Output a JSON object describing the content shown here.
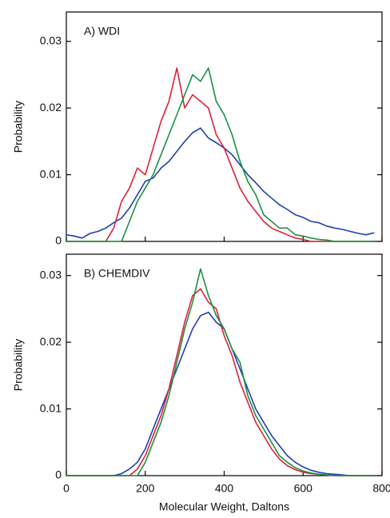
{
  "chart_data": [
    {
      "type": "line",
      "title": "A) WDI",
      "ylabel": "Probability",
      "x": [
        0,
        20,
        40,
        60,
        80,
        100,
        120,
        140,
        160,
        180,
        200,
        220,
        240,
        260,
        280,
        300,
        320,
        340,
        360,
        380,
        400,
        420,
        440,
        460,
        480,
        500,
        520,
        540,
        560,
        580,
        600,
        620,
        640,
        660,
        680,
        700,
        720,
        740,
        760,
        780
      ],
      "xlim": [
        0,
        800
      ],
      "xticks": [
        0,
        200,
        400,
        600,
        800
      ],
      "ylim": [
        0,
        0.0344
      ],
      "yticks": [
        0,
        0.01,
        0.02,
        0.03
      ],
      "series": [
        {
          "color": "#1f3fb0",
          "values": [
            0.001,
            0.0008,
            0.0005,
            0.0012,
            0.0015,
            0.002,
            0.0028,
            0.0035,
            0.005,
            0.007,
            0.009,
            0.0095,
            0.011,
            0.012,
            0.0135,
            0.015,
            0.0163,
            0.017,
            0.0155,
            0.0148,
            0.014,
            0.013,
            0.0115,
            0.01,
            0.0088,
            0.0075,
            0.0065,
            0.0055,
            0.0048,
            0.004,
            0.0036,
            0.003,
            0.0028,
            0.0023,
            0.002,
            0.0018,
            0.0015,
            0.0012,
            0.001,
            0.0013
          ]
        },
        {
          "color": "#e0203a",
          "values": [
            0,
            0,
            0,
            0,
            0,
            0,
            0.002,
            0.006,
            0.008,
            0.011,
            0.01,
            0.014,
            0.018,
            0.021,
            0.026,
            0.02,
            0.022,
            0.021,
            0.02,
            0.016,
            0.014,
            0.011,
            0.008,
            0.006,
            0.0045,
            0.003,
            0.002,
            0.0015,
            0.001,
            0.0005,
            0.0003,
            0,
            0,
            0,
            0,
            0,
            0,
            0,
            0,
            0
          ]
        },
        {
          "color": "#1a9040",
          "values": [
            0,
            0,
            0,
            0,
            0,
            0,
            0,
            0,
            0.003,
            0.006,
            0.008,
            0.01,
            0.013,
            0.016,
            0.019,
            0.022,
            0.025,
            0.024,
            0.026,
            0.021,
            0.019,
            0.016,
            0.012,
            0.009,
            0.007,
            0.004,
            0.003,
            0.002,
            0.002,
            0.001,
            0.0008,
            0.0005,
            0.0003,
            0.0002,
            0,
            0,
            0,
            0,
            0,
            0
          ]
        }
      ]
    },
    {
      "type": "line",
      "title": "B) CHEMDIV",
      "ylabel": "Probability",
      "xlabel": "Molecular Weight, Daltons",
      "x": [
        0,
        20,
        40,
        60,
        80,
        100,
        120,
        140,
        160,
        180,
        200,
        220,
        240,
        260,
        280,
        300,
        320,
        340,
        360,
        380,
        400,
        420,
        440,
        460,
        480,
        500,
        520,
        540,
        560,
        580,
        600,
        620,
        640,
        660,
        680,
        700,
        720,
        740,
        760,
        780
      ],
      "xlim": [
        0,
        800
      ],
      "xticks": [
        0,
        200,
        400,
        600,
        800
      ],
      "ylim": [
        0,
        0.0332
      ],
      "yticks": [
        0,
        0.01,
        0.02,
        0.03
      ],
      "series": [
        {
          "color": "#1f3fb0",
          "values": [
            0,
            0,
            0,
            0,
            0,
            0,
            0,
            0.0003,
            0.001,
            0.002,
            0.004,
            0.007,
            0.01,
            0.013,
            0.016,
            0.019,
            0.022,
            0.024,
            0.0245,
            0.023,
            0.022,
            0.019,
            0.016,
            0.013,
            0.01,
            0.008,
            0.006,
            0.0045,
            0.003,
            0.002,
            0.0013,
            0.0008,
            0.0005,
            0.0003,
            0.0002,
            0.0001,
            0,
            0,
            0,
            0
          ]
        },
        {
          "color": "#e0203a",
          "values": [
            0,
            0,
            0,
            0,
            0,
            0,
            0,
            0,
            0,
            0.001,
            0.003,
            0.006,
            0.009,
            0.013,
            0.018,
            0.023,
            0.027,
            0.028,
            0.026,
            0.025,
            0.021,
            0.018,
            0.014,
            0.011,
            0.008,
            0.006,
            0.004,
            0.0025,
            0.0015,
            0.0009,
            0.0005,
            0.0003,
            0.0002,
            0.0001,
            0,
            0,
            0,
            0,
            0,
            0
          ]
        },
        {
          "color": "#1a9040",
          "values": [
            0,
            0,
            0,
            0,
            0,
            0,
            0,
            0,
            0,
            0,
            0.002,
            0.005,
            0.008,
            0.012,
            0.017,
            0.022,
            0.026,
            0.031,
            0.027,
            0.024,
            0.022,
            0.019,
            0.017,
            0.012,
            0.009,
            0.007,
            0.005,
            0.003,
            0.002,
            0.0012,
            0.0007,
            0.0004,
            0.0002,
            0.0001,
            0,
            0,
            0,
            0,
            0,
            0
          ]
        }
      ]
    }
  ]
}
